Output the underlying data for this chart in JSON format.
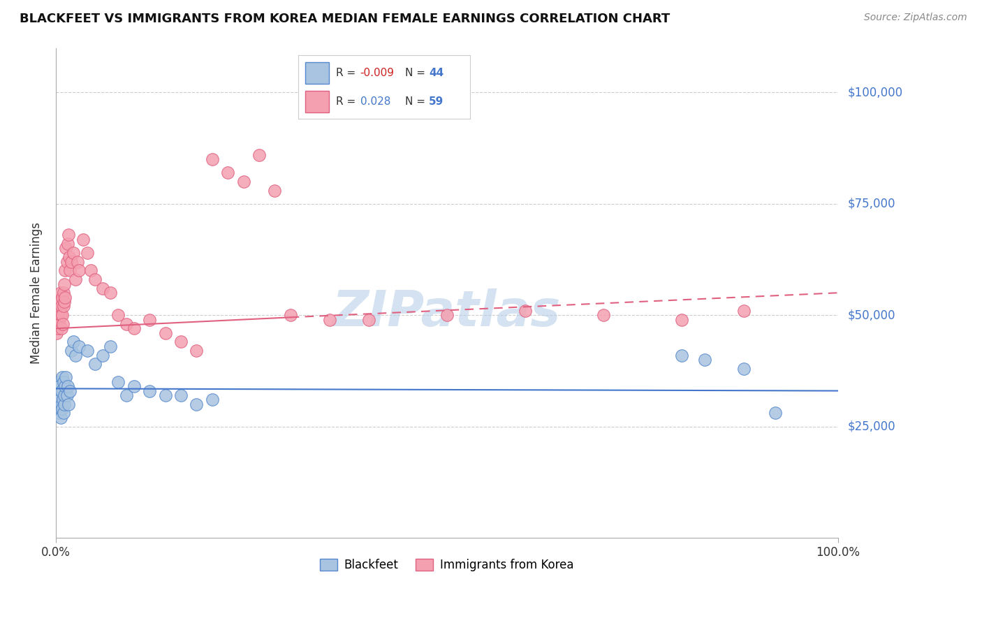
{
  "title": "BLACKFEET VS IMMIGRANTS FROM KOREA MEDIAN FEMALE EARNINGS CORRELATION CHART",
  "source": "Source: ZipAtlas.com",
  "ylabel": "Median Female Earnings",
  "xlim": [
    0.0,
    100.0
  ],
  "ylim": [
    0,
    110000
  ],
  "yticks": [
    0,
    25000,
    50000,
    75000,
    100000
  ],
  "ytick_labels": [
    "",
    "$25,000",
    "$50,000",
    "$75,000",
    "$100,000"
  ],
  "xtick_labels": [
    "0.0%",
    "100.0%"
  ],
  "legend_labels": [
    "Blackfeet",
    "Immigrants from Korea"
  ],
  "blackfeet_color": "#A8C4E0",
  "korea_color": "#F4A0B0",
  "blackfeet_edge_color": "#5588CC",
  "korea_edge_color": "#E06080",
  "blackfeet_line_color": "#4477CC",
  "korea_line_color": "#E06080",
  "R_blackfeet": "-0.009",
  "N_blackfeet": 44,
  "R_korea": "0.028",
  "N_korea": 59,
  "blackfeet_x": [
    0.1,
    0.2,
    0.3,
    0.35,
    0.4,
    0.5,
    0.55,
    0.6,
    0.65,
    0.7,
    0.75,
    0.8,
    0.85,
    0.9,
    0.95,
    1.0,
    1.05,
    1.1,
    1.2,
    1.3,
    1.4,
    1.5,
    1.6,
    1.8,
    2.0,
    2.2,
    2.5,
    3.0,
    4.0,
    5.0,
    6.0,
    7.0,
    8.0,
    9.0,
    10.0,
    12.0,
    14.0,
    16.0,
    18.0,
    20.0,
    80.0,
    83.0,
    88.0,
    92.0
  ],
  "blackfeet_y": [
    32000,
    33000,
    30000,
    35000,
    28000,
    34000,
    31000,
    29000,
    27000,
    30000,
    33000,
    36000,
    29000,
    31000,
    28000,
    35000,
    30000,
    32000,
    34000,
    36000,
    32000,
    34000,
    30000,
    33000,
    42000,
    44000,
    41000,
    43000,
    42000,
    39000,
    41000,
    43000,
    35000,
    32000,
    34000,
    33000,
    32000,
    32000,
    30000,
    31000,
    41000,
    40000,
    38000,
    28000
  ],
  "korea_x": [
    0.1,
    0.2,
    0.25,
    0.3,
    0.35,
    0.4,
    0.45,
    0.5,
    0.55,
    0.6,
    0.65,
    0.7,
    0.75,
    0.8,
    0.85,
    0.9,
    0.95,
    1.0,
    1.05,
    1.1,
    1.15,
    1.2,
    1.3,
    1.4,
    1.5,
    1.6,
    1.7,
    1.8,
    2.0,
    2.2,
    2.5,
    2.8,
    3.0,
    3.5,
    4.0,
    4.5,
    5.0,
    6.0,
    7.0,
    8.0,
    9.0,
    10.0,
    12.0,
    14.0,
    16.0,
    18.0,
    20.0,
    22.0,
    24.0,
    26.0,
    28.0,
    30.0,
    35.0,
    40.0,
    50.0,
    60.0,
    70.0,
    80.0,
    88.0
  ],
  "korea_y": [
    46000,
    48000,
    50000,
    47000,
    52000,
    49000,
    48000,
    51000,
    53000,
    50000,
    55000,
    52000,
    47000,
    54000,
    50000,
    48000,
    52000,
    55000,
    53000,
    57000,
    54000,
    60000,
    65000,
    62000,
    66000,
    68000,
    63000,
    60000,
    62000,
    64000,
    58000,
    62000,
    60000,
    67000,
    64000,
    60000,
    58000,
    56000,
    55000,
    50000,
    48000,
    47000,
    49000,
    46000,
    44000,
    42000,
    85000,
    82000,
    80000,
    86000,
    78000,
    50000,
    49000,
    49000,
    50000,
    51000,
    50000,
    49000,
    51000
  ],
  "bf_trendline_x0": 0,
  "bf_trendline_y0": 33500,
  "bf_trendline_x1": 100,
  "bf_trendline_y1": 33000,
  "ko_solid_x0": 0,
  "ko_solid_y0": 47000,
  "ko_solid_x1": 30,
  "ko_solid_y1": 49500,
  "ko_dash_x0": 30,
  "ko_dash_y0": 49500,
  "ko_dash_x1": 100,
  "ko_dash_y1": 55000
}
